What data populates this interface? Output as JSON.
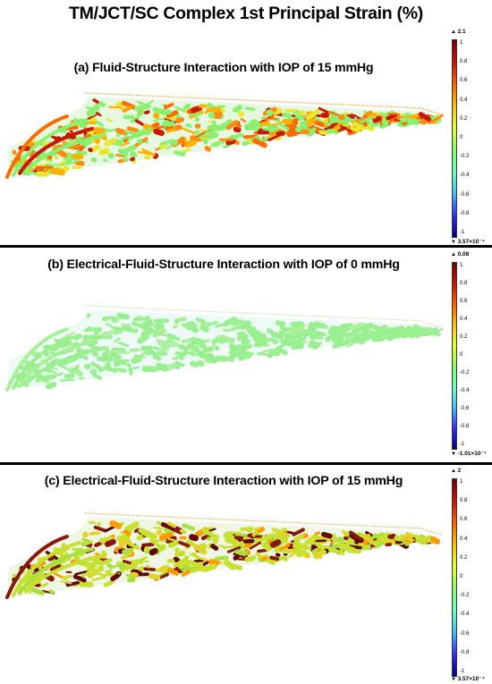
{
  "title": "TM/JCT/SC Complex 1st Principal Strain (%)",
  "colorbar_ticks": [
    "1",
    "0.8",
    "0.6",
    "0.4",
    "0.2",
    "0",
    "-0.2",
    "-0.4",
    "-0.6",
    "-0.8",
    "-1"
  ],
  "colormap": [
    "#000080",
    "#3030ff",
    "#40c0ff",
    "#70ffc0",
    "#80ff60",
    "#e0ff30",
    "#ffc000",
    "#ff6000",
    "#d01000",
    "#700000"
  ],
  "panels": [
    {
      "label": "(a) Fluid-Structure Interaction with IOP of 15 mmHg",
      "cbar_max": "2.1",
      "cbar_min": "3.57×10⁻⁴",
      "tissue_fill": "#8af070",
      "strain_colors": [
        "#ff6a00",
        "#ffb000",
        "#c81800",
        "#e8e830",
        "#ff8a10"
      ]
    },
    {
      "label": "(b) Electrical-Fluid-Structure Interaction with IOP of 0 mmHg",
      "cbar_max": "0.08",
      "cbar_min": "-1.01×10⁻⁷",
      "tissue_fill": "#9af090",
      "strain_colors": [
        "#a8f098",
        "#b0f0a8"
      ]
    },
    {
      "label": "(c) Electrical-Fluid-Structure Interaction with IOP of 15 mmHg",
      "cbar_max": "2",
      "cbar_min": "3.57×10⁻⁴",
      "tissue_fill": "#c8e030",
      "strain_colors": [
        "#8a1808",
        "#ff9a00",
        "#a8e040",
        "#e8d020",
        "#600800"
      ]
    }
  ]
}
